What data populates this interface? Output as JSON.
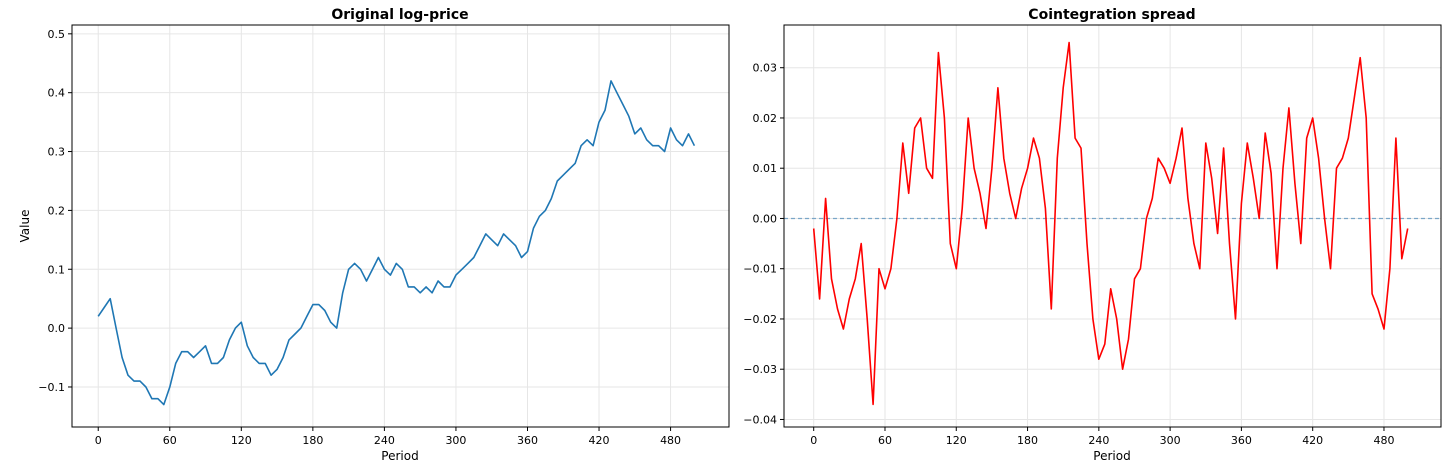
{
  "chart_data": [
    {
      "type": "line",
      "title": "Original log-price",
      "xlabel": "Period",
      "ylabel": "Value",
      "xlim": [
        -22,
        529
      ],
      "ylim": [
        -0.168,
        0.515
      ],
      "xticks": [
        0,
        60,
        120,
        180,
        240,
        300,
        360,
        420,
        480
      ],
      "xtick_labels": [
        "0",
        "60",
        "120",
        "180",
        "240",
        "300",
        "360",
        "420",
        "480"
      ],
      "yticks": [
        -0.1,
        0.0,
        0.1,
        0.2,
        0.3,
        0.4,
        0.5
      ],
      "ytick_labels": [
        "−0.1",
        "0.0",
        "0.1",
        "0.2",
        "0.3",
        "0.4",
        "0.5"
      ],
      "grid": true,
      "series": [
        {
          "color": "#1f77b4",
          "x": [
            0,
            5,
            10,
            15,
            20,
            25,
            30,
            35,
            40,
            45,
            50,
            55,
            60,
            65,
            70,
            75,
            80,
            85,
            90,
            95,
            100,
            105,
            110,
            115,
            120,
            125,
            130,
            135,
            140,
            145,
            150,
            155,
            160,
            165,
            170,
            175,
            180,
            185,
            190,
            195,
            200,
            205,
            210,
            215,
            220,
            225,
            230,
            235,
            240,
            245,
            250,
            255,
            260,
            265,
            270,
            275,
            280,
            285,
            290,
            295,
            300,
            305,
            310,
            315,
            320,
            325,
            330,
            335,
            340,
            345,
            350,
            355,
            360,
            365,
            370,
            375,
            380,
            385,
            390,
            395,
            400,
            405,
            410,
            415,
            420,
            425,
            430,
            435,
            440,
            445,
            450,
            455,
            460,
            465,
            470,
            475,
            480,
            485,
            490,
            495,
            500
          ],
          "values": [
            0.02,
            0.035,
            0.05,
            0.0,
            -0.05,
            -0.08,
            -0.09,
            -0.09,
            -0.1,
            -0.12,
            -0.12,
            -0.13,
            -0.1,
            -0.06,
            -0.04,
            -0.04,
            -0.05,
            -0.04,
            -0.03,
            -0.06,
            -0.06,
            -0.05,
            -0.02,
            0.0,
            0.01,
            -0.03,
            -0.05,
            -0.06,
            -0.06,
            -0.08,
            -0.07,
            -0.05,
            -0.02,
            -0.01,
            0.0,
            0.02,
            0.04,
            0.04,
            0.03,
            0.01,
            0.0,
            0.06,
            0.1,
            0.11,
            0.1,
            0.08,
            0.1,
            0.12,
            0.1,
            0.09,
            0.11,
            0.1,
            0.07,
            0.07,
            0.06,
            0.07,
            0.06,
            0.08,
            0.07,
            0.07,
            0.09,
            0.1,
            0.11,
            0.12,
            0.14,
            0.16,
            0.15,
            0.14,
            0.16,
            0.15,
            0.14,
            0.12,
            0.13,
            0.17,
            0.19,
            0.2,
            0.22,
            0.25,
            0.26,
            0.27,
            0.28,
            0.31,
            0.32,
            0.31,
            0.35,
            0.37,
            0.42,
            0.4,
            0.38,
            0.36,
            0.33,
            0.34,
            0.32,
            0.31,
            0.31,
            0.3,
            0.34,
            0.32,
            0.31,
            0.33,
            0.31
          ]
        }
      ]
    },
    {
      "type": "line",
      "title": "Cointegration spread",
      "xlabel": "Period",
      "ylabel": "",
      "xlim": [
        -25,
        528
      ],
      "ylim": [
        -0.0415,
        0.0385
      ],
      "xticks": [
        0,
        60,
        120,
        180,
        240,
        300,
        360,
        420,
        480
      ],
      "xtick_labels": [
        "0",
        "60",
        "120",
        "180",
        "240",
        "300",
        "360",
        "420",
        "480"
      ],
      "yticks": [
        -0.04,
        -0.03,
        -0.02,
        -0.01,
        0.0,
        0.01,
        0.02,
        0.03
      ],
      "ytick_labels": [
        "−0.04",
        "−0.03",
        "−0.02",
        "−0.01",
        "0.00",
        "0.01",
        "0.02",
        "0.03"
      ],
      "grid": true,
      "reference_line": {
        "y": 0.0,
        "style": "dashed",
        "color": "#7aa6c8"
      },
      "series": [
        {
          "color": "#ff0000",
          "x": [
            0,
            5,
            10,
            15,
            20,
            25,
            30,
            35,
            40,
            45,
            50,
            55,
            60,
            65,
            70,
            75,
            80,
            85,
            90,
            95,
            100,
            105,
            110,
            115,
            120,
            125,
            130,
            135,
            140,
            145,
            150,
            155,
            160,
            165,
            170,
            175,
            180,
            185,
            190,
            195,
            200,
            205,
            210,
            215,
            220,
            225,
            230,
            235,
            240,
            245,
            250,
            255,
            260,
            265,
            270,
            275,
            280,
            285,
            290,
            295,
            300,
            305,
            310,
            315,
            320,
            325,
            330,
            335,
            340,
            345,
            350,
            355,
            360,
            365,
            370,
            375,
            380,
            385,
            390,
            395,
            400,
            405,
            410,
            415,
            420,
            425,
            430,
            435,
            440,
            445,
            450,
            455,
            460,
            465,
            470,
            475,
            480,
            485,
            490,
            495,
            500
          ],
          "values": [
            -0.002,
            -0.016,
            0.004,
            -0.012,
            -0.018,
            -0.022,
            -0.016,
            -0.012,
            -0.005,
            -0.02,
            -0.037,
            -0.01,
            -0.014,
            -0.01,
            0.0,
            0.015,
            0.005,
            0.018,
            0.02,
            0.01,
            0.008,
            0.033,
            0.02,
            -0.005,
            -0.01,
            0.002,
            0.02,
            0.01,
            0.005,
            -0.002,
            0.01,
            0.026,
            0.012,
            0.005,
            0.0,
            0.006,
            0.01,
            0.016,
            0.012,
            0.002,
            -0.018,
            0.012,
            0.026,
            0.035,
            0.016,
            0.014,
            -0.005,
            -0.02,
            -0.028,
            -0.025,
            -0.014,
            -0.02,
            -0.03,
            -0.024,
            -0.012,
            -0.01,
            0.0,
            0.004,
            0.012,
            0.01,
            0.007,
            0.012,
            0.018,
            0.004,
            -0.005,
            -0.01,
            0.015,
            0.008,
            -0.003,
            0.014,
            -0.005,
            -0.02,
            0.003,
            0.015,
            0.008,
            0.0,
            0.017,
            0.009,
            -0.01,
            0.01,
            0.022,
            0.007,
            -0.005,
            0.016,
            0.02,
            0.012,
            0.0,
            -0.01,
            0.01,
            0.012,
            0.016,
            0.024,
            0.032,
            0.02,
            -0.015,
            -0.018,
            -0.022,
            -0.01,
            0.016,
            -0.008,
            -0.002
          ]
        }
      ]
    }
  ]
}
